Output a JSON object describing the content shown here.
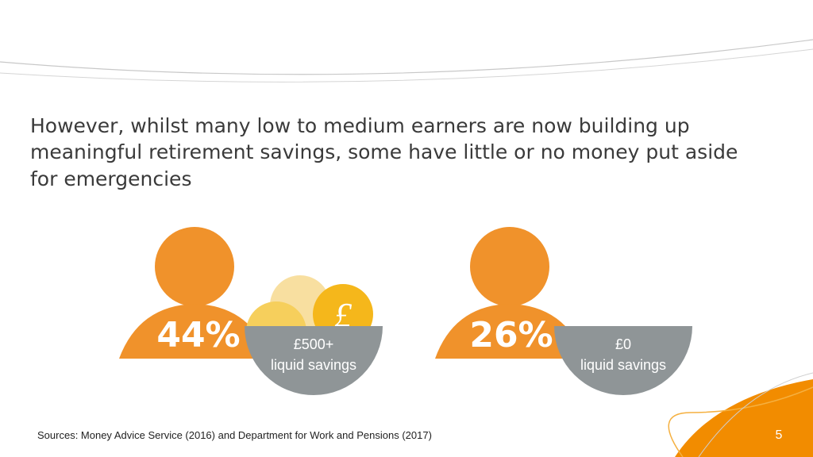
{
  "heading": {
    "lines": [
      "However, whilst many low to medium earners are now building up",
      "meaningful retirement savings, some have little or no money put aside",
      "for emergencies"
    ]
  },
  "figures": [
    {
      "percent": "44%",
      "amount": "£500+",
      "label": "liquid savings"
    },
    {
      "percent": "26%",
      "amount": "£0",
      "label": "liquid savings"
    }
  ],
  "footer": {
    "source": "Sources: Money Advice Service (2016) and Department for Work and Pensions (2017)",
    "page": "5"
  }
}
